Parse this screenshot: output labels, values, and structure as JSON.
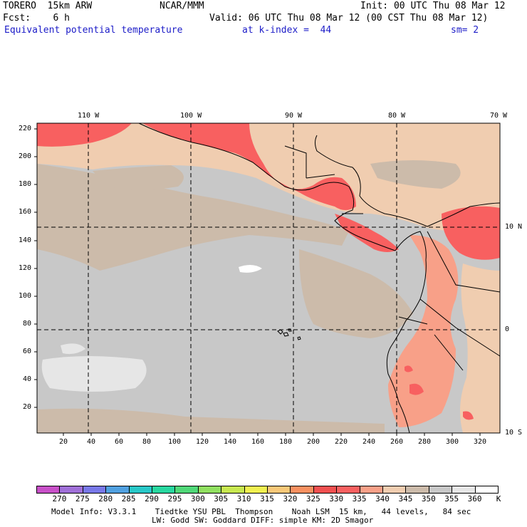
{
  "header": {
    "model_title": "TORERO  15km ARW",
    "org": "NCAR/MMM",
    "init": "Init: 00 UTC Thu 08 Mar 12",
    "fcst": "Fcst:    6 h",
    "valid": "Valid: 06 UTC Thu 08 Mar 12 (00 CST Thu 08 Mar 12)",
    "field": "Equivalent potential temperature",
    "level": "at k-index =  44",
    "smooth": "sm= 2"
  },
  "lon_labels": [
    "110 W",
    "100 W",
    "90 W",
    "80 W",
    "70 W"
  ],
  "lat_labels": [
    "10 N",
    "0",
    "10 S"
  ],
  "y_ticks": [
    "220",
    "200",
    "180",
    "160",
    "140",
    "120",
    "100",
    "80",
    "60",
    "40",
    "20"
  ],
  "x_ticks": [
    "20",
    "40",
    "60",
    "80",
    "100",
    "120",
    "140",
    "160",
    "180",
    "200",
    "220",
    "240",
    "260",
    "280",
    "300",
    "320"
  ],
  "colorbar": {
    "labels": [
      "270",
      "275",
      "280",
      "285",
      "290",
      "295",
      "300",
      "305",
      "310",
      "315",
      "320",
      "325",
      "330",
      "335",
      "340",
      "345",
      "350",
      "355",
      "360"
    ],
    "unit": "K",
    "colors": [
      "#c850c8",
      "#a070d8",
      "#7878e8",
      "#50a0e0",
      "#28c8c8",
      "#28d8a0",
      "#50d878",
      "#90e060",
      "#c8e850",
      "#f0f050",
      "#f8c878",
      "#f89060",
      "#f05050",
      "#f86060",
      "#f8a088",
      "#f0cdb0",
      "#ccbbaa",
      "#c8c8c8",
      "#e6e6e6",
      "#ffffff"
    ]
  },
  "footer": {
    "line1": "Model Info: V3.3.1    Tiedtke YSU PBL  Thompson    Noah LSM  15 km,   44 levels,   84 sec",
    "line2": "LW: Godd SW: Goddard DIFF: simple KM: 2D Smagor"
  }
}
